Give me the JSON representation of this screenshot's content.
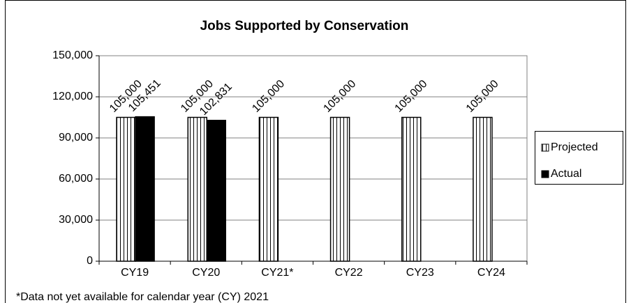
{
  "chart_data": {
    "type": "bar",
    "title": "Jobs Supported by Conservation",
    "categories": [
      "CY19",
      "CY20",
      "CY21*",
      "CY22",
      "CY23",
      "CY24"
    ],
    "series": [
      {
        "name": "Projected",
        "color": "#ffffff",
        "pattern": "vertical-stripes",
        "values": [
          105000,
          105000,
          105000,
          105000,
          105000,
          105000
        ],
        "value_labels": [
          "105,000",
          "105,000",
          "105,000",
          "105,000",
          "105,000",
          "105,000"
        ]
      },
      {
        "name": "Actual",
        "color": "#000000",
        "values": [
          105451,
          102831,
          null,
          null,
          null,
          null
        ],
        "value_labels": [
          "105,451",
          "102,831",
          null,
          null,
          null,
          null
        ]
      }
    ],
    "ylim": [
      0,
      150000
    ],
    "yticks": [
      0,
      {
        "value": 30000,
        "label": "30,000"
      },
      {
        "value": 60000,
        "label": "60,000"
      },
      {
        "value": 90000,
        "label": "90,000"
      },
      {
        "value": 120000,
        "label": "120,000"
      },
      {
        "value": 150000,
        "label": "150,000"
      }
    ],
    "grid": true,
    "legend": "right",
    "note": "*Data not yet available for calendar year (CY) 2021"
  }
}
